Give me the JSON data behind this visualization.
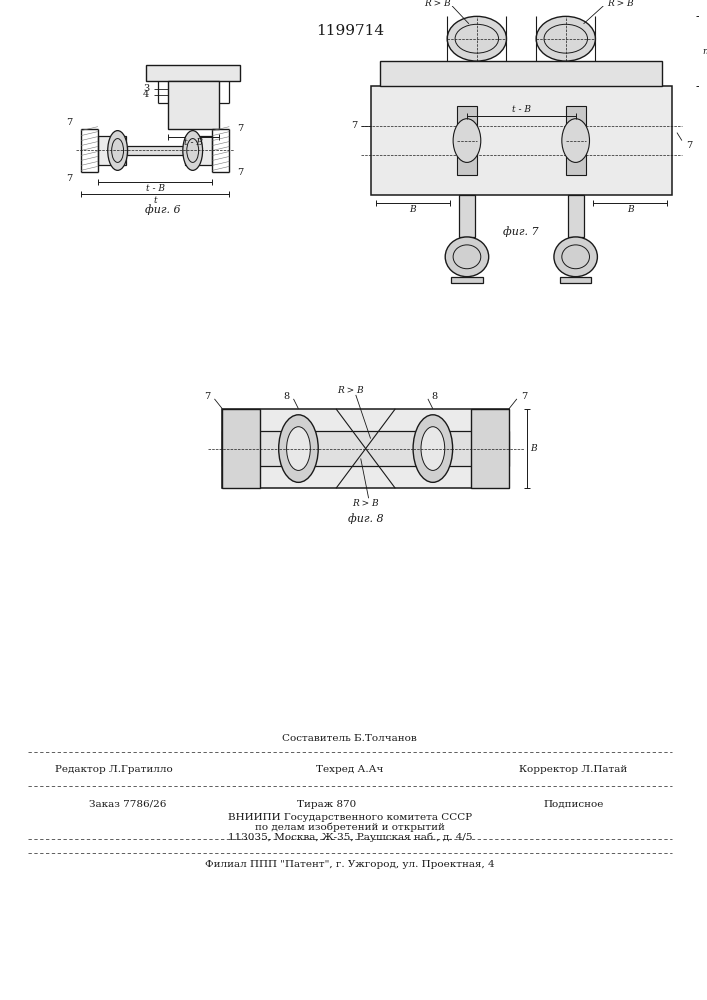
{
  "patent_number": "1199714",
  "bg_color": "#ffffff",
  "lc": "#1a1a1a",
  "fig6_caption": "фиг. 6",
  "fig7_caption": "фиг. 7",
  "fig8_caption": "фиг. 8",
  "footer": {
    "line1_center": "Составитель Б.Толчанов",
    "line2_left": "Редактор Л.Гратилло",
    "line2_center": "Техред А.Ач",
    "line2_right": "Корректор Л.Патай",
    "line3_left": "Заказ 7786/26",
    "line3_center": "Тираж 870",
    "line3_right": "Подписное",
    "line4": "ВНИИПИ Государственного комитета СССР",
    "line5": "по делам изобретений и открытий",
    "line6": "113035, Москва, Ж-35, Раушская наб., д. 4/5",
    "line7": "Филиал ППП \"Патент\", г. Ужгород, ул. Проектная, 4"
  }
}
